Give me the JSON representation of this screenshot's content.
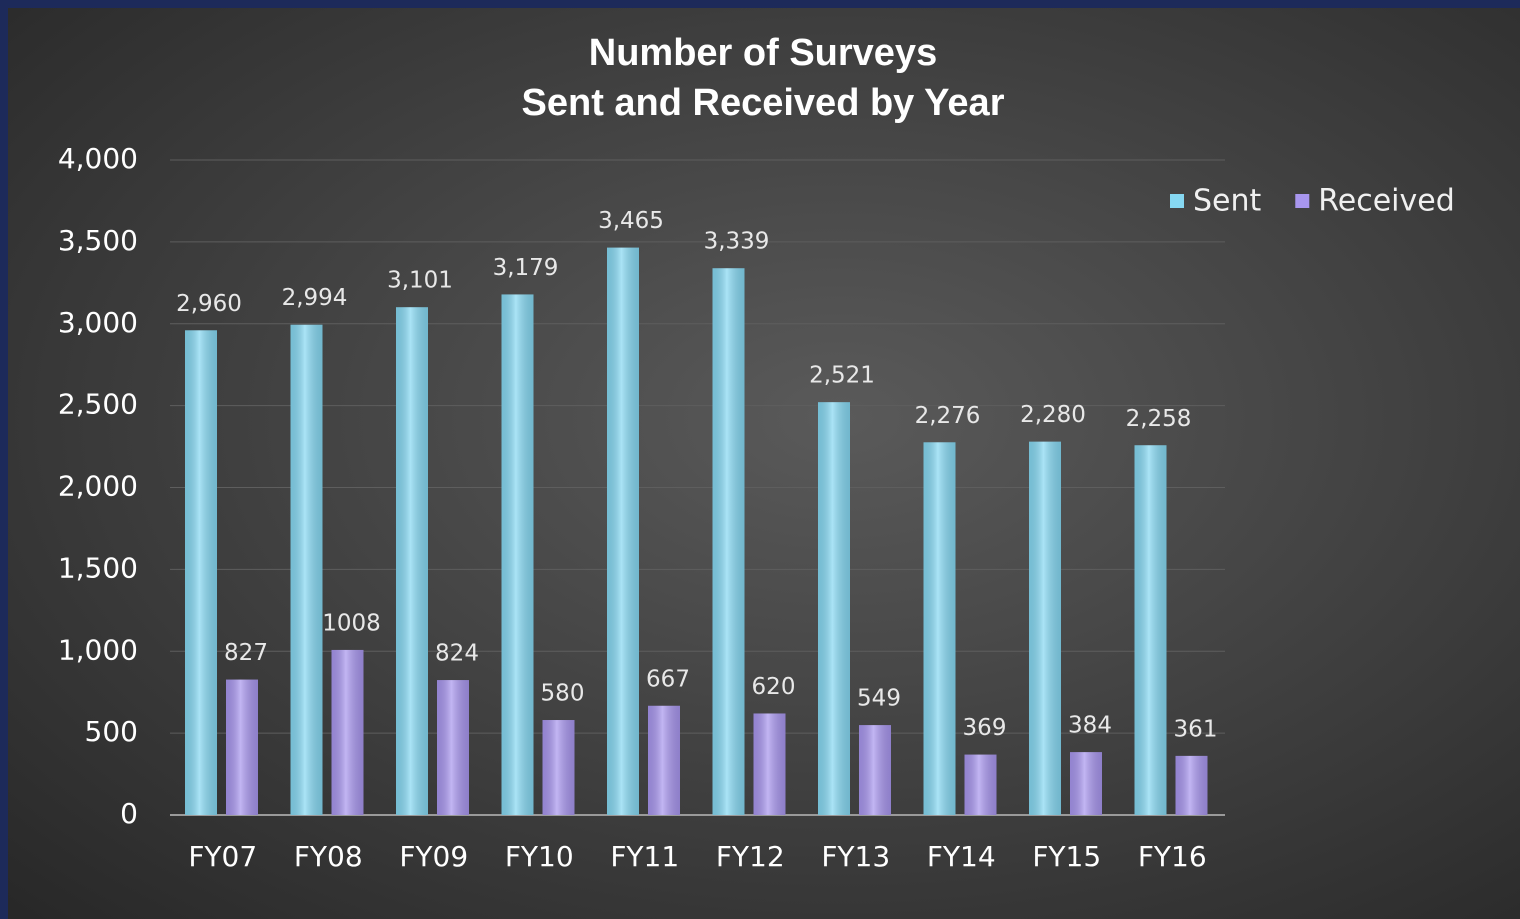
{
  "chart_data": {
    "type": "bar",
    "title": [
      "Number of Surveys",
      "Sent and Received by Year"
    ],
    "categories": [
      "FY07",
      "FY08",
      "FY09",
      "FY10",
      "FY11",
      "FY12",
      "FY13",
      "FY14",
      "FY15",
      "FY16"
    ],
    "series": [
      {
        "name": "Sent",
        "color": "#86d8f2",
        "values": [
          2960,
          2994,
          3101,
          3179,
          3465,
          3339,
          2521,
          2276,
          2280,
          2258
        ],
        "value_labels": [
          "2,960",
          "2,994",
          "3,101",
          "3,179",
          "3,465",
          "3,339",
          "2,521",
          "2,276",
          "2,280",
          "2,258"
        ]
      },
      {
        "name": "Received",
        "color": "#a896ee",
        "values": [
          827,
          1008,
          824,
          580,
          667,
          620,
          549,
          369,
          384,
          361
        ]
      }
    ],
    "ylim": [
      0,
      4000
    ],
    "yticks": [
      0,
      500,
      {
        "value": 1000,
        "label": "1,000"
      },
      {
        "value": 1500,
        "label": "1,500"
      },
      {
        "value": 2000,
        "label": "2,000"
      },
      {
        "value": 2500,
        "label": "2,500"
      },
      {
        "value": 3000,
        "label": "3,000"
      },
      {
        "value": 3500,
        "label": "3,500"
      },
      {
        "value": 4000,
        "label": "4,000"
      }
    ],
    "grid": true,
    "legend": "top-right"
  }
}
